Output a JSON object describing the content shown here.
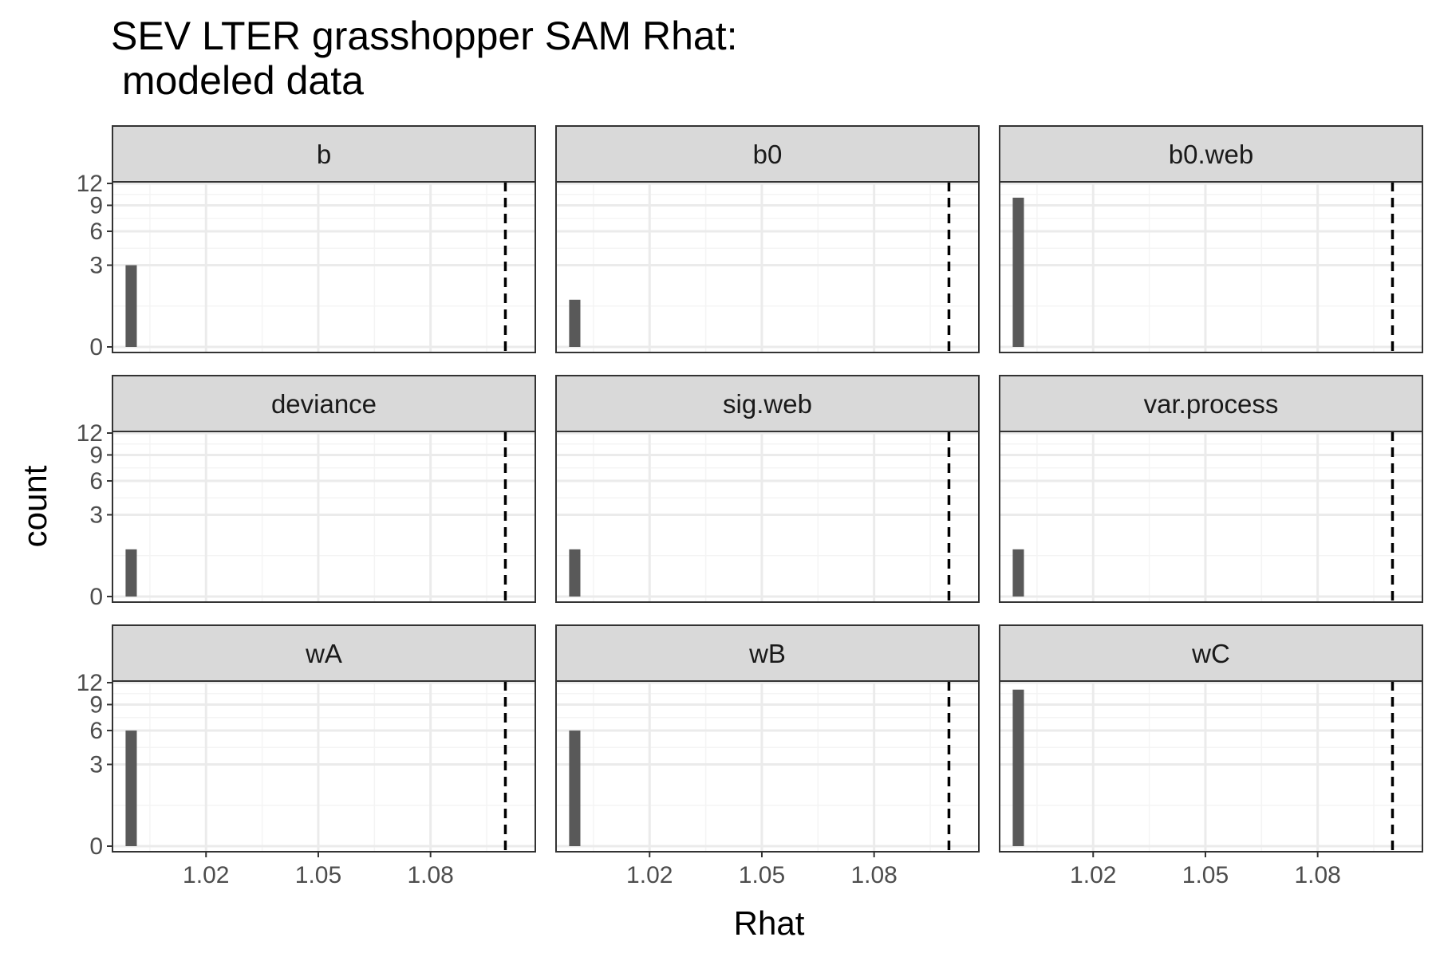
{
  "chart_data": {
    "type": "bar",
    "title": "SEV LTER grasshopper SAM Rhat:\n modeled data",
    "xlabel": "Rhat",
    "ylabel": "count",
    "x_ticks": [
      1.02,
      1.05,
      1.08
    ],
    "y_ticks": [
      0,
      3,
      6,
      9,
      12
    ],
    "y_scale": "sqrt",
    "xlim": [
      0.995,
      1.108
    ],
    "ylim": [
      0,
      12
    ],
    "reference_line": {
      "x": 1.1,
      "style": "dashed",
      "color": "#000000"
    },
    "bin_width": 0.003,
    "grid": true,
    "facets": [
      {
        "label": "b",
        "bars": [
          {
            "x": 1.0,
            "count": 3
          }
        ]
      },
      {
        "label": "b0",
        "bars": [
          {
            "x": 1.0,
            "count": 1
          }
        ]
      },
      {
        "label": "b0.web",
        "bars": [
          {
            "x": 1.0,
            "count": 10
          }
        ]
      },
      {
        "label": "deviance",
        "bars": [
          {
            "x": 1.0,
            "count": 1
          }
        ]
      },
      {
        "label": "sig.web",
        "bars": [
          {
            "x": 1.0,
            "count": 1
          }
        ]
      },
      {
        "label": "var.process",
        "bars": [
          {
            "x": 1.0,
            "count": 1
          }
        ]
      },
      {
        "label": "wA",
        "bars": [
          {
            "x": 1.0,
            "count": 6
          }
        ]
      },
      {
        "label": "wB",
        "bars": [
          {
            "x": 1.0,
            "count": 6
          }
        ]
      },
      {
        "label": "wC",
        "bars": [
          {
            "x": 1.0,
            "count": 11
          }
        ]
      }
    ]
  },
  "colors": {
    "bar": "#595959",
    "strip_bg": "#d9d9d9",
    "panel_border": "#333333",
    "grid_major": "#ebebeb",
    "grid_minor": "#f4f4f4",
    "ref_line": "#000000"
  }
}
